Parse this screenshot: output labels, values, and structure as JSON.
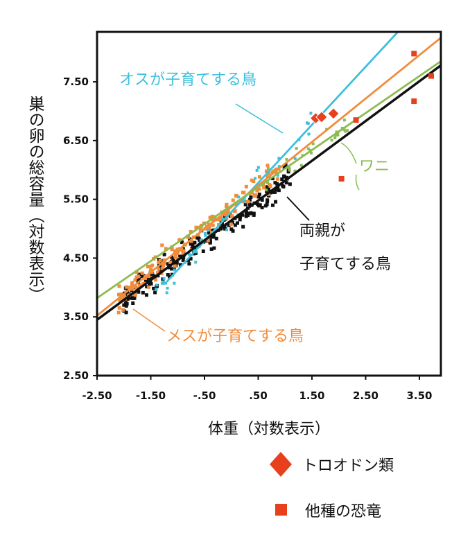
{
  "chart_data": {
    "type": "scatter",
    "xlabel": "体重（対数表示）",
    "ylabel": "巣の卵の総容量（対数表示）",
    "xlim": [
      -2.5,
      3.9
    ],
    "ylim": [
      2.5,
      8.35
    ],
    "x_ticks": [
      -2.5,
      -1.5,
      -0.5,
      0.5,
      1.5,
      2.5,
      3.5
    ],
    "x_tick_labels": [
      "-2.50",
      "-1.50",
      "-.50",
      ".50",
      "1.50",
      "2.50",
      "3.50"
    ],
    "y_ticks": [
      2.5,
      3.5,
      4.5,
      5.5,
      6.5,
      7.5
    ],
    "y_tick_labels": [
      "2.50",
      "3.50",
      "4.50",
      "5.50",
      "6.50",
      "7.50"
    ],
    "colors": {
      "male_care": "#3cc0dc",
      "female_care": "#f08c3c",
      "crocodile": "#8cbc50",
      "biparental": "#111111",
      "troodontid": "#e8401c",
      "other_dino": "#e8401c"
    },
    "lines": [
      {
        "name": "オスが子育てする鳥",
        "series": "male_care",
        "x": [
          -1.2,
          3.1
        ],
        "y": [
          4.1,
          8.35
        ]
      },
      {
        "name": "メスが子育てする鳥",
        "series": "female_care",
        "x": [
          -2.5,
          3.9
        ],
        "y": [
          3.52,
          8.25
        ]
      },
      {
        "name": "ワニ",
        "series": "crocodile",
        "x": [
          -2.5,
          3.9
        ],
        "y": [
          3.82,
          7.85
        ]
      },
      {
        "name": "両親が子育てする鳥",
        "series": "biparental",
        "x": [
          -2.5,
          3.9
        ],
        "y": [
          3.45,
          7.78
        ]
      }
    ],
    "troodontid_points": {
      "x": [
        1.57,
        1.68,
        1.9
      ],
      "y": [
        6.88,
        6.9,
        6.96
      ]
    },
    "other_dinosaur_points": {
      "x": [
        3.4,
        3.4,
        3.72,
        2.05,
        2.32
      ],
      "y": [
        7.98,
        7.17,
        7.6,
        5.85,
        6.85
      ]
    },
    "annotations": [
      {
        "text": "オスが子育てする鳥",
        "series": "male_care"
      },
      {
        "text": "ワニ",
        "series": "crocodile"
      },
      {
        "text": "両親が",
        "series": "biparental"
      },
      {
        "text": "子育てする鳥",
        "series": "biparental"
      },
      {
        "text": "メスが子育てする鳥",
        "series": "female_care"
      }
    ],
    "legend": [
      {
        "label": "トロオドン類",
        "marker": "diamond"
      },
      {
        "label": "他種の恐竜",
        "marker": "square"
      }
    ]
  }
}
